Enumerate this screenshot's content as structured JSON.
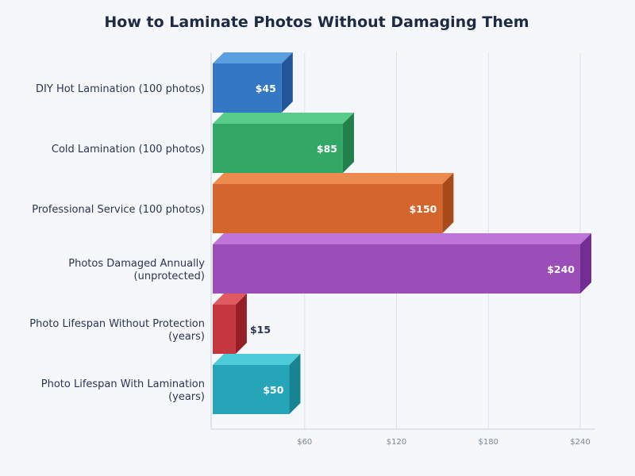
{
  "chart_data": {
    "type": "bar",
    "orientation": "horizontal",
    "title": "How to Laminate Photos Without Damaging Them",
    "xlabel": "",
    "ylabel": "",
    "xlim": [
      0,
      240
    ],
    "x_ticks": [
      "$60",
      "$120",
      "$180",
      "$240"
    ],
    "x_tick_values": [
      60,
      120,
      180,
      240
    ],
    "grid": true,
    "categories": [
      "DIY Hot Lamination (100 photos)",
      "Cold Lamination (100 photos)",
      "Professional Service (100 photos)",
      "Photos Damaged Annually (unprotected)",
      "Photo Lifespan Without Protection (years)",
      "Photo Lifespan With Lamination (years)"
    ],
    "values": [
      45,
      85,
      150,
      240,
      15,
      50
    ],
    "value_labels": [
      "$45",
      "$85",
      "$150",
      "$240",
      "$15",
      "$50"
    ],
    "colors": [
      "#3478c4",
      "#33a866",
      "#d4652c",
      "#9b4db8",
      "#c4373f",
      "#26a5b8"
    ],
    "top_colors": [
      "#5aa0e0",
      "#58cd8a",
      "#ec8a50",
      "#bf74d8",
      "#e05a62",
      "#4ccbd8"
    ],
    "side_colors": [
      "#22569a",
      "#22804c",
      "#a84a1a",
      "#722e92",
      "#961e26",
      "#168494"
    ]
  }
}
